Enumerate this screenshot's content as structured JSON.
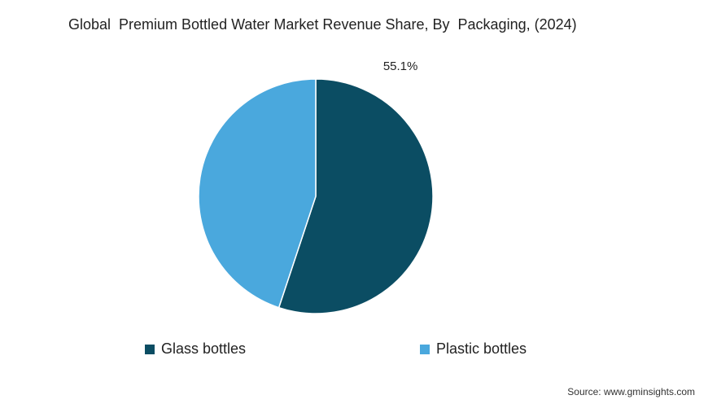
{
  "chart_data": {
    "type": "pie",
    "title": "Global  Premium Bottled Water Market Revenue Share, By  Packaging, (2024)",
    "slices": [
      {
        "name": "Glass bottles",
        "value": 55.1,
        "label": "55.1%",
        "color": "#0b4d63"
      },
      {
        "name": "Plastic bottles",
        "value": 44.9,
        "label": "",
        "color": "#4aa8dd"
      }
    ],
    "legend_position": "bottom"
  },
  "legend": {
    "items": [
      {
        "label": "Glass bottles",
        "color": "#0b4d63"
      },
      {
        "label": "Plastic bottles",
        "color": "#4aa8dd"
      }
    ]
  },
  "source": "Source: www.gminsights.com"
}
